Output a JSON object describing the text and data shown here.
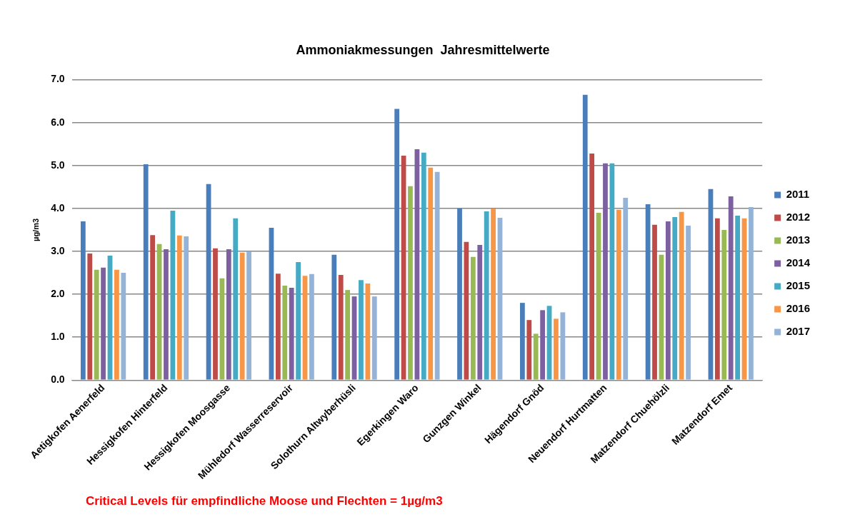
{
  "chart_data": {
    "type": "bar",
    "title": "Ammoniakmessungen  Jahresmittelwerte",
    "ylabel": "µg/m3",
    "categories": [
      "Aetigkofen Aenerfeld",
      "Hessigkofen Hinterfeld",
      "Hessigkofen Moosgasse",
      "Mühledorf Wasserreservoir",
      "Solothurn Altwyberhüsli",
      "Egerkingen Waro",
      "Gunzgen Winkel",
      "Hägendorf Gnöd",
      "Neuendorf Hurtmatten",
      "Matzendorf Chuehölzli",
      "Matzendorf Emet"
    ],
    "series": [
      {
        "name": "2011",
        "color": "#4a7ebb",
        "values": [
          3.7,
          5.03,
          4.57,
          3.55,
          2.92,
          6.32,
          4.0,
          1.8,
          6.65,
          4.1,
          4.45
        ]
      },
      {
        "name": "2012",
        "color": "#be4b48",
        "values": [
          2.95,
          3.38,
          3.07,
          2.48,
          2.45,
          5.23,
          3.22,
          1.4,
          5.28,
          3.62,
          3.77
        ]
      },
      {
        "name": "2013",
        "color": "#98b954",
        "values": [
          2.57,
          3.17,
          2.37,
          2.2,
          2.1,
          4.52,
          2.87,
          1.08,
          3.9,
          2.92,
          3.5
        ]
      },
      {
        "name": "2014",
        "color": "#7d60a0",
        "values": [
          2.62,
          3.05,
          3.05,
          2.15,
          1.95,
          5.38,
          3.15,
          1.63,
          5.05,
          3.7,
          4.28
        ]
      },
      {
        "name": "2015",
        "color": "#46aac5",
        "values": [
          2.9,
          3.95,
          3.77,
          2.75,
          2.33,
          5.3,
          3.93,
          1.73,
          5.05,
          3.8,
          3.83
        ]
      },
      {
        "name": "2016",
        "color": "#f79646",
        "values": [
          2.57,
          3.37,
          2.97,
          2.43,
          2.25,
          4.95,
          4.0,
          1.43,
          3.97,
          3.92,
          3.77
        ]
      },
      {
        "name": "2017",
        "color": "#95b3d7",
        "values": [
          2.5,
          3.35,
          3.0,
          2.47,
          1.95,
          4.85,
          3.78,
          1.58,
          4.25,
          3.6,
          4.03
        ]
      }
    ],
    "ylim": [
      0,
      7
    ],
    "yticks": [
      {
        "value": 0,
        "label": "0.0"
      },
      {
        "value": 1,
        "label": "1.0"
      },
      {
        "value": 2,
        "label": "2.0"
      },
      {
        "value": 3,
        "label": "3.0"
      },
      {
        "value": 4,
        "label": "4.0"
      },
      {
        "value": 5,
        "label": "5.0"
      },
      {
        "value": 6,
        "label": "6.0"
      },
      {
        "value": 7,
        "label": "7.0"
      }
    ],
    "grid": "y",
    "legend": "right",
    "annotations": [
      "Critical Levels für empfindliche Moose und Flechten = 1µg/m3"
    ]
  }
}
